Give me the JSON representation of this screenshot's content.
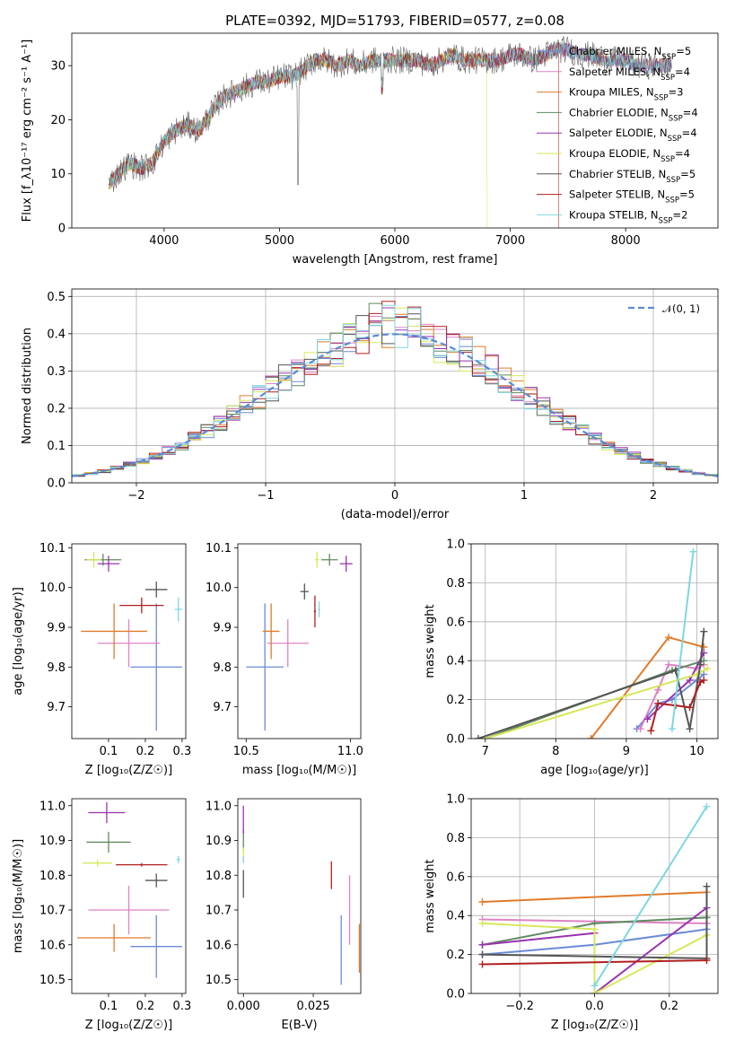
{
  "colors": {
    "chabrier_miles": "#6b8ad6",
    "salpeter_miles": "#df82c4",
    "kroupa_miles": "#e07b2a",
    "chabrier_elodie": "#5e8a5e",
    "salpeter_elodie": "#9932b0",
    "kroupa_elodie": "#d6e85a",
    "chabrier_stelib": "#555555",
    "salpeter_stelib": "#b02020",
    "kroupa_stelib": "#7fd6e0"
  },
  "chart_data": [
    {
      "id": "spectrum",
      "type": "line",
      "title": "PLATE=0392, MJD=51793, FIBERID=0577, z=0.08",
      "xlabel": "wavelength [Angstrom, rest frame]",
      "ylabel": "Flux [f_λ10⁻¹⁷ erg cm⁻² s⁻¹ A⁻¹]",
      "xlim": [
        3200,
        8800
      ],
      "ylim": [
        0,
        36
      ],
      "xticks": [
        4000,
        5000,
        6000,
        7000,
        8000
      ],
      "yticks": [
        0,
        10,
        20,
        30
      ],
      "legend_position": "top-right",
      "x": [
        3520,
        3600,
        3700,
        3800,
        3900,
        4000,
        4100,
        4200,
        4300,
        4400,
        4500,
        4600,
        4700,
        4800,
        4900,
        5000,
        5100,
        5200,
        5300,
        5400,
        5500,
        5600,
        5700,
        5800,
        5900,
        6000,
        6100,
        6200,
        6300,
        6400,
        6500,
        6600,
        6700,
        6800,
        6900,
        7000,
        7100,
        7200,
        7300,
        7400,
        7500,
        7600,
        7700,
        7800,
        7900,
        8000,
        8100,
        8200,
        8300,
        8400
      ],
      "y": [
        8,
        10,
        12,
        11,
        12,
        16,
        18,
        19,
        18,
        21,
        24,
        25,
        26,
        27,
        27,
        28,
        28,
        29,
        31,
        31,
        30,
        31,
        30,
        31,
        31,
        31,
        31,
        31,
        30,
        31,
        32,
        31,
        31,
        31,
        31,
        32,
        32,
        31,
        32,
        33,
        33,
        32,
        32,
        31,
        31,
        31,
        30,
        30,
        30,
        30
      ],
      "series": [
        {
          "name": "Chabrier MILES",
          "n_ssp": "5",
          "color_key": "chabrier_miles"
        },
        {
          "name": "Salpeter MILES",
          "n_ssp": "4",
          "color_key": "salpeter_miles"
        },
        {
          "name": "Kroupa MILES",
          "n_ssp": "3",
          "color_key": "kroupa_miles"
        },
        {
          "name": "Chabrier ELODIE",
          "n_ssp": "4",
          "color_key": "chabrier_elodie"
        },
        {
          "name": "Salpeter ELODIE",
          "n_ssp": "4",
          "color_key": "salpeter_elodie"
        },
        {
          "name": "Kroupa ELODIE",
          "n_ssp": "4",
          "color_key": "kroupa_elodie"
        },
        {
          "name": "Chabrier STELIB",
          "n_ssp": "5",
          "color_key": "chabrier_stelib"
        },
        {
          "name": "Salpeter STELIB",
          "n_ssp": "5",
          "color_key": "salpeter_stelib"
        },
        {
          "name": "Kroupa STELIB",
          "n_ssp": "2",
          "color_key": "kroupa_stelib"
        }
      ]
    },
    {
      "id": "residuals",
      "type": "line",
      "xlabel": "(data-model)/error",
      "ylabel": "Normed distribution",
      "xlim": [
        -2.5,
        2.5
      ],
      "ylim": [
        0,
        0.52
      ],
      "xticks": [
        -2,
        -1,
        0,
        1,
        2
      ],
      "xtick_labels": [
        "−2",
        "−1",
        "0",
        "1",
        "2"
      ],
      "yticks": [
        0.0,
        0.1,
        0.2,
        0.3,
        0.4,
        0.5
      ],
      "ytick_labels": [
        "0.0",
        "0.1",
        "0.2",
        "0.3",
        "0.4",
        "0.5"
      ],
      "grid": true,
      "legend": "𝒩(0, 1)",
      "legend_position": "top-right",
      "bin_width": 0.1
    },
    {
      "id": "age_vs_z",
      "type": "scatter",
      "xlabel": "Z [log₁₀(Z/Z☉)]",
      "ylabel": "age  [log₁₀(age/yr)]",
      "xlim": [
        0.0,
        0.31
      ],
      "ylim": [
        9.62,
        10.11
      ],
      "xticks": [
        0.1,
        0.2,
        0.3
      ],
      "xtick_labels": [
        "0.1",
        "0.2",
        "0.3"
      ],
      "yticks": [
        9.7,
        9.8,
        9.9,
        10.0,
        10.1
      ],
      "ytick_labels": [
        "9.7",
        "9.8",
        "9.9",
        "10.0",
        "10.1"
      ],
      "points": [
        {
          "c": "chabrier_miles",
          "x": 0.23,
          "y": 9.8,
          "xe": 0.07,
          "ye": 0.16
        },
        {
          "c": "salpeter_miles",
          "x": 0.155,
          "y": 9.86,
          "xe": 0.085,
          "ye": 0.06
        },
        {
          "c": "kroupa_miles",
          "x": 0.115,
          "y": 9.89,
          "xe": 0.09,
          "ye": 0.07
        },
        {
          "c": "chabrier_elodie",
          "x": 0.085,
          "y": 10.07,
          "xe": 0.05,
          "ye": 0.015
        },
        {
          "c": "salpeter_elodie",
          "x": 0.1,
          "y": 10.06,
          "xe": 0.03,
          "ye": 0.02
        },
        {
          "c": "kroupa_elodie",
          "x": 0.06,
          "y": 10.07,
          "xe": 0.02,
          "ye": 0.02
        },
        {
          "c": "chabrier_stelib",
          "x": 0.23,
          "y": 9.995,
          "xe": 0.03,
          "ye": 0.02
        },
        {
          "c": "salpeter_stelib",
          "x": 0.19,
          "y": 9.955,
          "xe": 0.06,
          "ye": 0.02
        },
        {
          "c": "kroupa_stelib",
          "x": 0.29,
          "y": 9.945,
          "xe": 0.01,
          "ye": 0.03
        }
      ]
    },
    {
      "id": "age_vs_mass",
      "type": "scatter",
      "xlabel": "mass [log₁₀(M/M☉)]",
      "ylabel": "",
      "xlim": [
        10.46,
        11.05
      ],
      "ylim": [
        9.62,
        10.11
      ],
      "xticks": [
        10.5,
        11.0
      ],
      "xtick_labels": [
        "10.5",
        "11.0"
      ],
      "yticks": [
        9.7,
        9.8,
        9.9,
        10.0,
        10.1
      ],
      "ytick_labels": [
        "9.7",
        "9.8",
        "9.9",
        "10.0",
        "10.1"
      ],
      "points": [
        {
          "c": "chabrier_miles",
          "x": 10.59,
          "y": 9.8,
          "xe": 0.09,
          "ye": 0.16
        },
        {
          "c": "salpeter_miles",
          "x": 10.7,
          "y": 9.86,
          "xe": 0.1,
          "ye": 0.06
        },
        {
          "c": "kroupa_miles",
          "x": 10.62,
          "y": 9.89,
          "xe": 0.04,
          "ye": 0.07
        },
        {
          "c": "chabrier_elodie",
          "x": 10.9,
          "y": 10.07,
          "xe": 0.04,
          "ye": 0.015
        },
        {
          "c": "salpeter_elodie",
          "x": 10.98,
          "y": 10.06,
          "xe": 0.03,
          "ye": 0.02
        },
        {
          "c": "kroupa_elodie",
          "x": 10.84,
          "y": 10.07,
          "xe": 0.01,
          "ye": 0.02
        },
        {
          "c": "chabrier_stelib",
          "x": 10.78,
          "y": 9.99,
          "xe": 0.02,
          "ye": 0.02
        },
        {
          "c": "salpeter_stelib",
          "x": 10.83,
          "y": 9.94,
          "xe": 0.005,
          "ye": 0.04
        },
        {
          "c": "kroupa_stelib",
          "x": 10.85,
          "y": 9.945,
          "xe": 0.005,
          "ye": 0.02
        }
      ]
    },
    {
      "id": "weight_vs_age",
      "type": "line",
      "xlabel": "age  [log₁₀(age/yr)]",
      "ylabel": "mass weight",
      "xlim": [
        6.8,
        10.3
      ],
      "ylim": [
        0,
        1.0
      ],
      "xticks": [
        7,
        8,
        9,
        10
      ],
      "xtick_labels": [
        "7",
        "8",
        "9",
        "10"
      ],
      "yticks": [
        0.0,
        0.2,
        0.4,
        0.6,
        0.8,
        1.0
      ],
      "ytick_labels": [
        "0.0",
        "0.2",
        "0.4",
        "0.6",
        "0.8",
        "1.0"
      ],
      "grid": true,
      "series": [
        {
          "c": "chabrier_miles",
          "x": [
            9.15,
            9.45,
            9.65,
            10.0,
            10.1
          ],
          "y": [
            0.05,
            0.18,
            0.2,
            0.3,
            0.33
          ]
        },
        {
          "c": "salpeter_miles",
          "x": [
            9.2,
            9.45,
            9.6,
            10.0,
            10.1
          ],
          "y": [
            0.05,
            0.25,
            0.38,
            0.36,
            0.38
          ]
        },
        {
          "c": "kroupa_miles",
          "x": [
            8.5,
            9.6,
            10.1
          ],
          "y": [
            0.0,
            0.52,
            0.47
          ]
        },
        {
          "c": "chabrier_elodie",
          "x": [
            7.0,
            9.65,
            10.1
          ],
          "y": [
            0.0,
            0.35,
            0.4
          ]
        },
        {
          "c": "salpeter_elodie",
          "x": [
            9.3,
            9.9,
            10.1
          ],
          "y": [
            0.1,
            0.3,
            0.44
          ]
        },
        {
          "c": "kroupa_elodie",
          "x": [
            7.0,
            10.0,
            10.15
          ],
          "y": [
            0.0,
            0.33,
            0.36
          ]
        },
        {
          "c": "chabrier_stelib",
          "x": [
            6.9,
            9.7,
            9.9,
            10.05,
            10.1
          ],
          "y": [
            0.0,
            0.35,
            0.05,
            0.38,
            0.55
          ]
        },
        {
          "c": "salpeter_stelib",
          "x": [
            9.35,
            9.45,
            9.7,
            9.9,
            10.05,
            10.1
          ],
          "y": [
            0.04,
            0.18,
            0.17,
            0.16,
            0.29,
            0.3
          ]
        },
        {
          "c": "kroupa_stelib",
          "x": [
            9.65,
            9.95
          ],
          "y": [
            0.05,
            0.96
          ]
        }
      ]
    },
    {
      "id": "mass_vs_z",
      "type": "scatter",
      "xlabel": "Z [log₁₀(Z/Z☉)]",
      "ylabel": "mass [log₁₀(M/M☉)]",
      "xlim": [
        0.0,
        0.31
      ],
      "ylim": [
        10.46,
        11.02
      ],
      "xticks": [
        0.1,
        0.2,
        0.3
      ],
      "xtick_labels": [
        "0.1",
        "0.2",
        "0.3"
      ],
      "yticks": [
        10.5,
        10.6,
        10.7,
        10.8,
        10.9,
        11.0
      ],
      "ytick_labels": [
        "10.5",
        "10.6",
        "10.7",
        "10.8",
        "10.9",
        "11.0"
      ],
      "points": [
        {
          "c": "chabrier_miles",
          "x": 0.23,
          "y": 10.595,
          "xe": 0.07,
          "ye": 0.09
        },
        {
          "c": "salpeter_miles",
          "x": 0.155,
          "y": 10.7,
          "xe": 0.11,
          "ye": 0.07
        },
        {
          "c": "kroupa_miles",
          "x": 0.115,
          "y": 10.62,
          "xe": 0.1,
          "ye": 0.04
        },
        {
          "c": "chabrier_elodie",
          "x": 0.1,
          "y": 10.895,
          "xe": 0.06,
          "ye": 0.03
        },
        {
          "c": "salpeter_elodie",
          "x": 0.095,
          "y": 10.98,
          "xe": 0.05,
          "ye": 0.03
        },
        {
          "c": "kroupa_elodie",
          "x": 0.07,
          "y": 10.835,
          "xe": 0.04,
          "ye": 0.01
        },
        {
          "c": "chabrier_stelib",
          "x": 0.23,
          "y": 10.785,
          "xe": 0.03,
          "ye": 0.02
        },
        {
          "c": "salpeter_stelib",
          "x": 0.19,
          "y": 10.83,
          "xe": 0.07,
          "ye": 0.005
        },
        {
          "c": "kroupa_stelib",
          "x": 0.29,
          "y": 10.845,
          "xe": 0.005,
          "ye": 0.01
        }
      ]
    },
    {
      "id": "mass_vs_ebv",
      "type": "scatter",
      "xlabel": "E(B-V)",
      "ylabel": "",
      "xlim": [
        -0.002,
        0.042
      ],
      "ylim": [
        10.46,
        11.02
      ],
      "xticks": [
        0.0,
        0.025
      ],
      "xtick_labels": [
        "0.000",
        "0.025"
      ],
      "yticks": [
        10.5,
        10.6,
        10.7,
        10.8,
        10.9,
        11.0
      ],
      "ytick_labels": [
        "10.5",
        "10.6",
        "10.7",
        "10.8",
        "10.9",
        "11.0"
      ],
      "points": [
        {
          "c": "chabrier_miles",
          "x": 0.035,
          "y": 10.585,
          "xe": 0.0,
          "ye": 0.1
        },
        {
          "c": "salpeter_miles",
          "x": 0.038,
          "y": 10.7,
          "xe": 0.0,
          "ye": 0.1
        },
        {
          "c": "kroupa_miles",
          "x": 0.0415,
          "y": 10.59,
          "xe": 0.0,
          "ye": 0.07
        },
        {
          "c": "chabrier_elodie",
          "x": 0.0,
          "y": 10.9,
          "xe": 0.0,
          "ye": 0.03
        },
        {
          "c": "salpeter_elodie",
          "x": 0.0,
          "y": 10.96,
          "xe": 0.0,
          "ye": 0.04
        },
        {
          "c": "kroupa_elodie",
          "x": 0.0,
          "y": 10.86,
          "xe": 0.0,
          "ye": 0.02
        },
        {
          "c": "chabrier_stelib",
          "x": 0.0,
          "y": 10.775,
          "xe": 0.0,
          "ye": 0.04
        },
        {
          "c": "salpeter_stelib",
          "x": 0.0315,
          "y": 10.8,
          "xe": 0.0,
          "ye": 0.04
        },
        {
          "c": "kroupa_stelib",
          "x": 0.0,
          "y": 10.845,
          "xe": 0.0,
          "ye": 0.01
        }
      ]
    },
    {
      "id": "weight_vs_z",
      "type": "line",
      "xlabel": "Z [log₁₀(Z/Z☉)]",
      "ylabel": "mass weight",
      "xlim": [
        -0.33,
        0.33
      ],
      "ylim": [
        0,
        1.0
      ],
      "xticks": [
        -0.2,
        0.0,
        0.2
      ],
      "xtick_labels": [
        "−0.2",
        "0.0",
        "0.2"
      ],
      "yticks": [
        0.0,
        0.2,
        0.4,
        0.6,
        0.8,
        1.0
      ],
      "ytick_labels": [
        "0.0",
        "0.2",
        "0.4",
        "0.6",
        "0.8",
        "1.0"
      ],
      "grid": true,
      "series": [
        {
          "c": "chabrier_miles",
          "x": [
            -0.3,
            0.0,
            0.3
          ],
          "y": [
            0.2,
            0.25,
            0.33
          ]
        },
        {
          "c": "salpeter_miles",
          "x": [
            -0.3,
            0.3
          ],
          "y": [
            0.38,
            0.36
          ]
        },
        {
          "c": "kroupa_miles",
          "x": [
            -0.3,
            0.3
          ],
          "y": [
            0.47,
            0.52
          ]
        },
        {
          "c": "chabrier_elodie",
          "x": [
            -0.3,
            0.0,
            0.3
          ],
          "y": [
            0.25,
            0.36,
            0.39
          ]
        },
        {
          "c": "salpeter_elodie",
          "x": [
            -0.3,
            0.0,
            0.0,
            0.3
          ],
          "y": [
            0.25,
            0.31,
            0.0,
            0.44
          ]
        },
        {
          "c": "kroupa_elodie",
          "x": [
            -0.3,
            0.0,
            0.0,
            0.3
          ],
          "y": [
            0.36,
            0.33,
            0.0,
            0.3
          ]
        },
        {
          "c": "chabrier_stelib",
          "x": [
            -0.3,
            0.3,
            0.3
          ],
          "y": [
            0.2,
            0.18,
            0.55
          ]
        },
        {
          "c": "salpeter_stelib",
          "x": [
            -0.3,
            0.3
          ],
          "y": [
            0.15,
            0.17
          ]
        },
        {
          "c": "kroupa_stelib",
          "x": [
            0.0,
            0.3
          ],
          "y": [
            0.04,
            0.96
          ]
        }
      ]
    }
  ]
}
